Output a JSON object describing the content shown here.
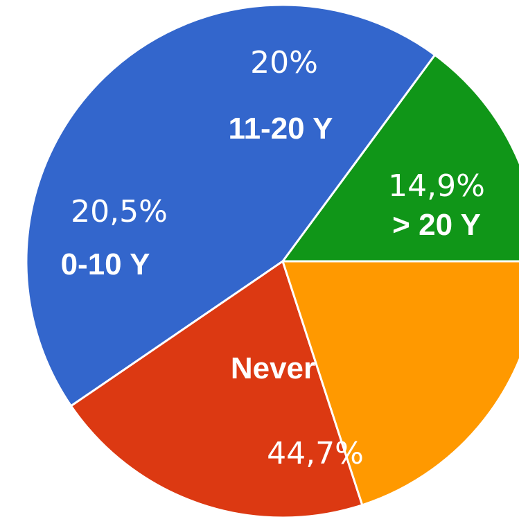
{
  "chart_data": {
    "type": "pie",
    "title": "",
    "categories": [
      "> 20 Y",
      "Never",
      "0-10 Y",
      "11-20 Y"
    ],
    "values": [
      14.9,
      44.7,
      20.5,
      20.0
    ],
    "value_labels": [
      "14,9%",
      "44,7%",
      "20,5%",
      "20%"
    ],
    "colors": [
      "#109618",
      "#3366cc",
      "#dc3912",
      "#ff9900"
    ],
    "legend": "none",
    "labels_inside": true
  }
}
